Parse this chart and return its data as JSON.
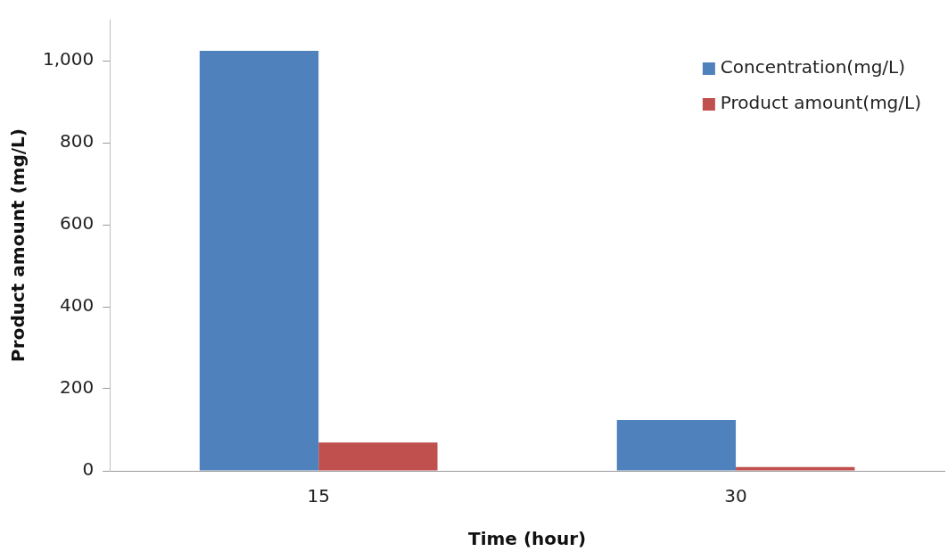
{
  "chart_data": {
    "type": "bar",
    "xlabel": "Time (hour)",
    "ylabel": "Product amount (mg/L)",
    "categories": [
      "15",
      "30"
    ],
    "series": [
      {
        "name": "Concentration(mg/L)",
        "color": "#4f81bd",
        "values": [
          1024,
          124
        ]
      },
      {
        "name": "Product amount(mg/L)",
        "color": "#c0504d",
        "values": [
          69,
          9
        ]
      }
    ],
    "ylim": [
      0,
      1100
    ],
    "yticks": [
      0,
      200,
      400,
      600,
      800,
      {
        "value": 1000,
        "label": "1,000"
      }
    ],
    "grid": false,
    "legend": "top right"
  }
}
